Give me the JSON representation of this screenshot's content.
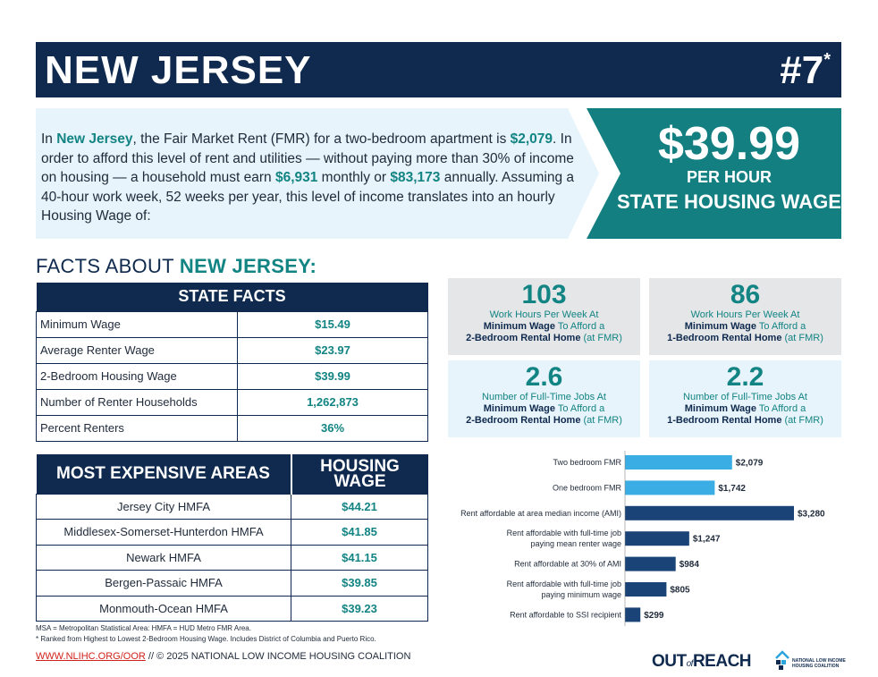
{
  "header": {
    "state": "NEW JERSEY",
    "rank": "#7",
    "rank_mark": "*"
  },
  "intro": {
    "t1": "In ",
    "state": "New Jersey",
    "t2": ", the Fair Market Rent (FMR) for a two-bedroom apartment is ",
    "fmr": "$2,079",
    "t3": ". In order to afford this level of rent and utilities — without paying more than 30% of income on housing — a household must earn ",
    "monthly": "$6,931",
    "t4": " monthly or ",
    "annual": "$83,173",
    "t5": " annually. Assuming a 40-hour work week, 52 weeks per year, this level of income translates into an hourly Housing Wage of:"
  },
  "wage_box": {
    "amount": "$39.99",
    "per_hour": "PER HOUR",
    "label": "STATE HOUSING WAGE"
  },
  "facts_title": {
    "prefix": "FACTS ABOUT ",
    "state": "NEW JERSEY:"
  },
  "state_facts": {
    "heading": "STATE FACTS",
    "rows": [
      {
        "label": "Minimum Wage",
        "value": "$15.49"
      },
      {
        "label": "Average Renter Wage",
        "value": "$23.97"
      },
      {
        "label": "2-Bedroom Housing Wage",
        "value": "$39.99"
      },
      {
        "label": "Number of Renter Households",
        "value": "1,262,873"
      },
      {
        "label": "Percent Renters",
        "value": "36%"
      }
    ]
  },
  "expensive_areas": {
    "heading": "MOST EXPENSIVE AREAS",
    "wage_heading_1": "HOUSING",
    "wage_heading_2": "WAGE",
    "rows": [
      {
        "area": "Jersey City HMFA",
        "wage": "$44.21"
      },
      {
        "area": "Middlesex-Somerset-Hunterdon HMFA",
        "wage": "$41.85"
      },
      {
        "area": "Newark HMFA",
        "wage": "$41.15"
      },
      {
        "area": "Bergen-Passaic HMFA",
        "wage": "$39.85"
      },
      {
        "area": "Monmouth-Ocean HMFA",
        "wage": "$39.23"
      }
    ]
  },
  "notes": {
    "n1": "MSA = Metropolitan Statistical Area: HMFA = HUD Metro FMR Area.",
    "n2": "* Ranked from Highest to Lowest 2-Bedroom Housing Wage. Includes District of Columbia and Puerto Rico."
  },
  "footer": {
    "url": "WWW.NLIHC.ORG/OOR",
    "rest": " // © 2025 NATIONAL LOW INCOME HOUSING COALITION"
  },
  "stats": [
    {
      "number": "103",
      "l1": "Work Hours Per Week At",
      "l2a": "Minimum Wage",
      "l2b": " To Afford a",
      "l3a": "2-Bedroom Rental Home",
      "l3b": " (at FMR)"
    },
    {
      "number": "86",
      "l1": "Work Hours Per Week At",
      "l2a": "Minimum Wage",
      "l2b": " To Afford a",
      "l3a": "1-Bedroom Rental Home",
      "l3b": " (at FMR)"
    },
    {
      "number": "2.6",
      "l1": "Number of Full-Time Jobs At",
      "l2a": "Minimum Wage",
      "l2b": " To Afford a",
      "l3a": "2-Bedroom Rental Home",
      "l3b": " (at FMR)"
    },
    {
      "number": "2.2",
      "l1": "Number of Full-Time Jobs At",
      "l2a": "Minimum Wage",
      "l2b": " To Afford a",
      "l3a": "1-Bedroom Rental Home",
      "l3b": " (at FMR)"
    }
  ],
  "chart_data": {
    "type": "bar",
    "orientation": "horizontal",
    "categories": [
      [
        "Two bedroom FMR"
      ],
      [
        "One bedroom FMR"
      ],
      [
        "Rent affordable at area median income (AMI)"
      ],
      [
        "Rent affordable with full-time job",
        "paying mean renter wage"
      ],
      [
        "Rent affordable at 30% of AMI"
      ],
      [
        "Rent affordable with full-time job",
        "paying minimum wage"
      ],
      [
        "Rent affordable to SSI recipient"
      ]
    ],
    "values": [
      2079,
      1742,
      3280,
      1247,
      984,
      805,
      299
    ],
    "value_labels": [
      "$2,079",
      "$1,742",
      "$3,280",
      "$1,247",
      "$984",
      "$805",
      "$299"
    ],
    "bar_colors": [
      "#3aaee4",
      "#3aaee4",
      "#1a4377",
      "#1a4377",
      "#1a4377",
      "#1a4377",
      "#1a4377"
    ],
    "xlim": [
      0,
      3280
    ],
    "grid": false
  },
  "brand": {
    "out": "OUT",
    "of": "of",
    "reach": "REACH",
    "org_1": "NATIONAL LOW INCOME",
    "org_2": "HOUSING COALITION"
  },
  "colors": {
    "navy": "#0f2a4e",
    "teal": "#137f80",
    "light_blue": "#e8f4fb",
    "bar_light": "#3aaee4",
    "bar_dark": "#1a4377"
  }
}
